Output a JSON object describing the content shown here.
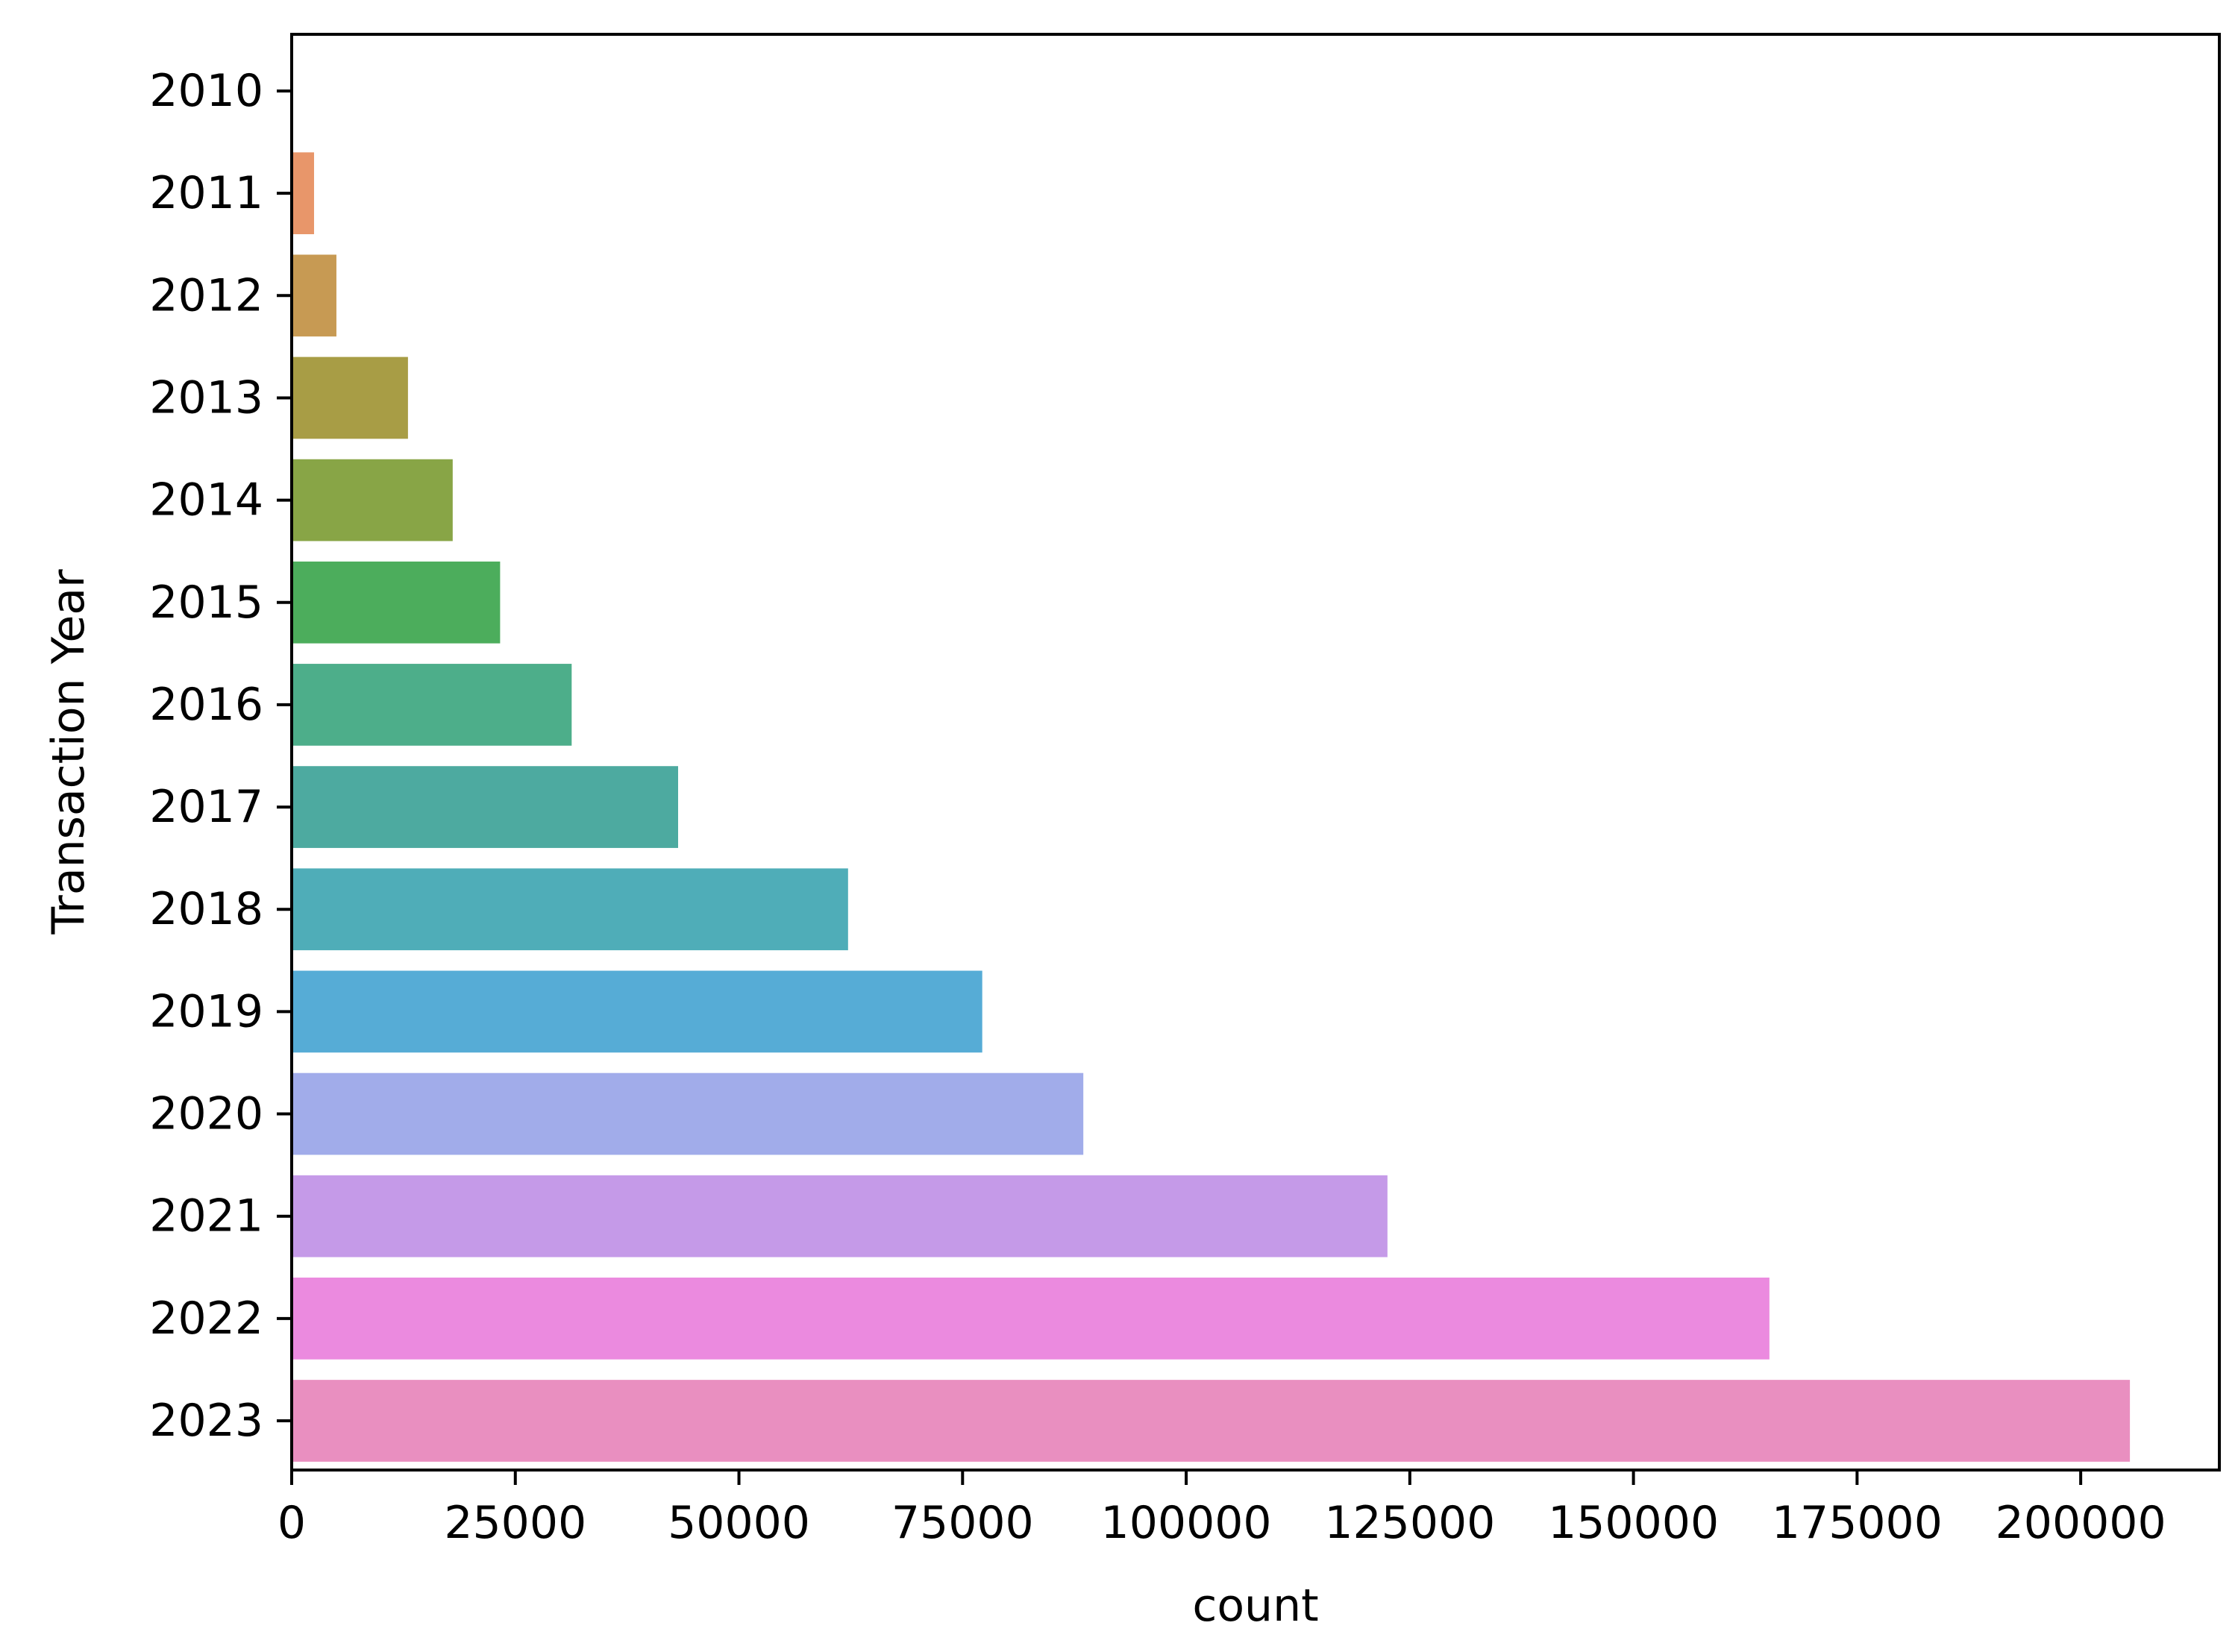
{
  "chart_data": {
    "type": "bar",
    "orientation": "horizontal",
    "categories": [
      "2010",
      "2011",
      "2012",
      "2013",
      "2014",
      "2015",
      "2016",
      "2017",
      "2018",
      "2019",
      "2020",
      "2021",
      "2022",
      "2023"
    ],
    "values": [
      150,
      2500,
      5000,
      13000,
      18000,
      23300,
      31300,
      43200,
      62200,
      77200,
      88500,
      122500,
      165200,
      205500
    ],
    "colors": [
      "#f17c6a",
      "#e8966a",
      "#c79a53",
      "#a89d45",
      "#88a546",
      "#4cad5c",
      "#4dae8a",
      "#4daaa0",
      "#4fadb8",
      "#56acd6",
      "#a1acea",
      "#c59ae8",
      "#eb8adf",
      "#e98fc0"
    ],
    "title": "",
    "xlabel": "count",
    "ylabel": "Transaction Year",
    "xlim": [
      0,
      215500
    ],
    "xticks": [
      0,
      25000,
      50000,
      75000,
      100000,
      125000,
      150000,
      175000,
      200000
    ],
    "xtick_labels": [
      "0",
      "25000",
      "50000",
      "75000",
      "100000",
      "125000",
      "150000",
      "175000",
      "200000"
    ],
    "grid": false,
    "legend": "none"
  }
}
